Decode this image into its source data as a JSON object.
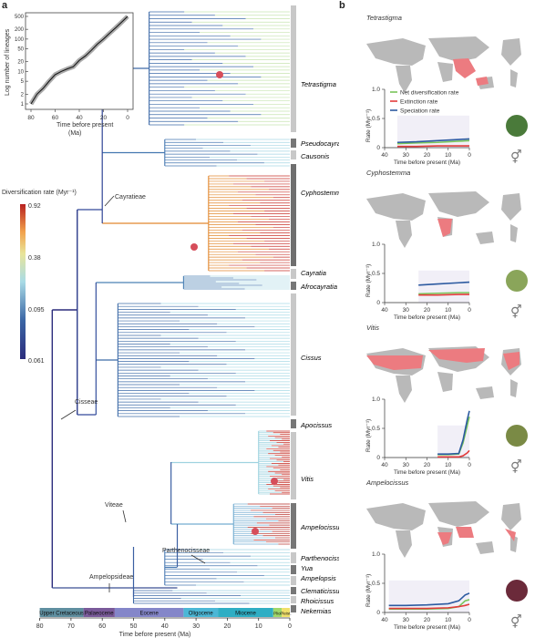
{
  "panel_a": {
    "label": "a",
    "inset": {
      "ylabel": "Log number of lineages",
      "xlabel": "Time before present\n(Ma)",
      "yticks": [
        "500",
        "200",
        "100",
        "50",
        "20",
        "10",
        "5",
        "2",
        "1"
      ],
      "xticks": [
        "80",
        "60",
        "40",
        "20",
        "0"
      ]
    },
    "colorbar": {
      "title": "Diversification rate (Myr⁻¹)",
      "ticks": [
        "0.92",
        "0.38",
        "0.095",
        "0.061"
      ]
    },
    "tribes": [
      "Cayratieae",
      "Cisseae",
      "Viteae",
      "Parthenocisseae",
      "Ampelopsideae"
    ],
    "clades": [
      "Tetrastigma",
      "Pseudocayratia",
      "Causonis",
      "Cyphostemma",
      "Cayratia",
      "Afrocayratia",
      "Cissus",
      "Apocissus",
      "Vitis",
      "Ampelocissus",
      "Parthenocissus",
      "Yua",
      "Ampelopsis",
      "Clematicissus",
      "Rhoicissus",
      "Nekemias"
    ],
    "epochs": [
      "Upper Cretaceous",
      "Palaeocene",
      "Eocene",
      "Oligocene",
      "Miocene",
      "Plio.",
      "Pleist."
    ],
    "xticks": [
      "80",
      "70",
      "60",
      "50",
      "40",
      "30",
      "20",
      "10",
      "0"
    ],
    "xlabel": "Time before present (Ma)"
  },
  "panel_b": {
    "label": "b",
    "legend": [
      "Net diversification rate",
      "Extinction rate",
      "Speciation rate"
    ],
    "ylabel": "Rate (Myr⁻¹)",
    "xlabel": "Time before present (Ma)",
    "xticks": [
      "40",
      "30",
      "20",
      "10",
      "0"
    ],
    "rows": [
      {
        "name": "Tetrastigma",
        "yticks": [
          "1.0",
          "0.5",
          "0"
        ]
      },
      {
        "name": "Cyphostemma",
        "yticks": [
          "1.0",
          "0.5",
          "0"
        ]
      },
      {
        "name": "Vitis",
        "yticks": [
          "1.0",
          "0.5",
          "0"
        ]
      },
      {
        "name": "Ampelocissus",
        "yticks": [
          "1.0",
          "0.5",
          "0"
        ]
      }
    ]
  },
  "colors": {
    "net": "#79c55a",
    "extinction": "#e23b3b",
    "speciation": "#2c5aa0",
    "map_land": "#b9b9b9",
    "map_range": "#ec7b80"
  },
  "chart_data": [
    {
      "type": "line",
      "title": "",
      "xlabel": "Time before present (Ma)",
      "ylabel": "Log number of lineages",
      "x": [
        80,
        75,
        70,
        65,
        60,
        55,
        50,
        45,
        40,
        35,
        30,
        25,
        20,
        15,
        10,
        5,
        0
      ],
      "series": [
        {
          "values": [
            1,
            2,
            3,
            5,
            8,
            10,
            12,
            14,
            22,
            30,
            45,
            70,
            100,
            150,
            220,
            330,
            500
          ]
        }
      ],
      "ylim": [
        1,
        500
      ],
      "xlim": [
        80,
        0
      ]
    },
    {
      "type": "line",
      "title": "Tetrastigma",
      "xlabel": "Time before present (Ma)",
      "ylabel": "Rate (Myr⁻¹)",
      "x": [
        34,
        25,
        15,
        5,
        0
      ],
      "series": [
        {
          "name": "Net diversification rate",
          "values": [
            0.07,
            0.08,
            0.09,
            0.11,
            0.12
          ]
        },
        {
          "name": "Extinction rate",
          "values": [
            0.02,
            0.02,
            0.03,
            0.03,
            0.03
          ]
        },
        {
          "name": "Speciation rate",
          "values": [
            0.09,
            0.1,
            0.12,
            0.14,
            0.15
          ]
        }
      ],
      "ylim": [
        0,
        1
      ],
      "xlim": [
        40,
        0
      ]
    },
    {
      "type": "line",
      "title": "Cyphostemma",
      "xlabel": "Time before present (Ma)",
      "ylabel": "Rate (Myr⁻¹)",
      "x": [
        24,
        15,
        5,
        0
      ],
      "series": [
        {
          "name": "Net diversification rate",
          "values": [
            0.15,
            0.16,
            0.17,
            0.17
          ]
        },
        {
          "name": "Extinction rate",
          "values": [
            0.13,
            0.13,
            0.14,
            0.14
          ]
        },
        {
          "name": "Speciation rate",
          "values": [
            0.3,
            0.32,
            0.34,
            0.35
          ]
        }
      ],
      "ylim": [
        0,
        1
      ],
      "xlim": [
        40,
        0
      ]
    },
    {
      "type": "line",
      "title": "Vitis",
      "xlabel": "Time before present (Ma)",
      "ylabel": "Rate (Myr⁻¹)",
      "x": [
        15,
        10,
        5,
        3,
        1,
        0
      ],
      "series": [
        {
          "name": "Net diversification rate",
          "values": [
            0.05,
            0.05,
            0.06,
            0.25,
            0.55,
            0.7
          ]
        },
        {
          "name": "Extinction rate",
          "values": [
            0.01,
            0.01,
            0.01,
            0.03,
            0.08,
            0.12
          ]
        },
        {
          "name": "Speciation rate",
          "values": [
            0.06,
            0.06,
            0.07,
            0.3,
            0.65,
            0.8
          ]
        }
      ],
      "ylim": [
        0,
        1
      ],
      "xlim": [
        40,
        0
      ]
    },
    {
      "type": "line",
      "title": "Ampelocissus",
      "xlabel": "Time before present (Ma)",
      "ylabel": "Rate (Myr⁻¹)",
      "x": [
        38,
        30,
        20,
        10,
        5,
        2,
        0
      ],
      "series": [
        {
          "name": "Net diversification rate",
          "values": [
            0.06,
            0.06,
            0.06,
            0.07,
            0.1,
            0.2,
            0.22
          ]
        },
        {
          "name": "Extinction rate",
          "values": [
            0.07,
            0.07,
            0.07,
            0.08,
            0.1,
            0.12,
            0.14
          ]
        },
        {
          "name": "Speciation rate",
          "values": [
            0.12,
            0.12,
            0.13,
            0.15,
            0.2,
            0.3,
            0.33
          ]
        }
      ],
      "ylim": [
        0,
        1
      ],
      "xlim": [
        40,
        0
      ]
    }
  ]
}
